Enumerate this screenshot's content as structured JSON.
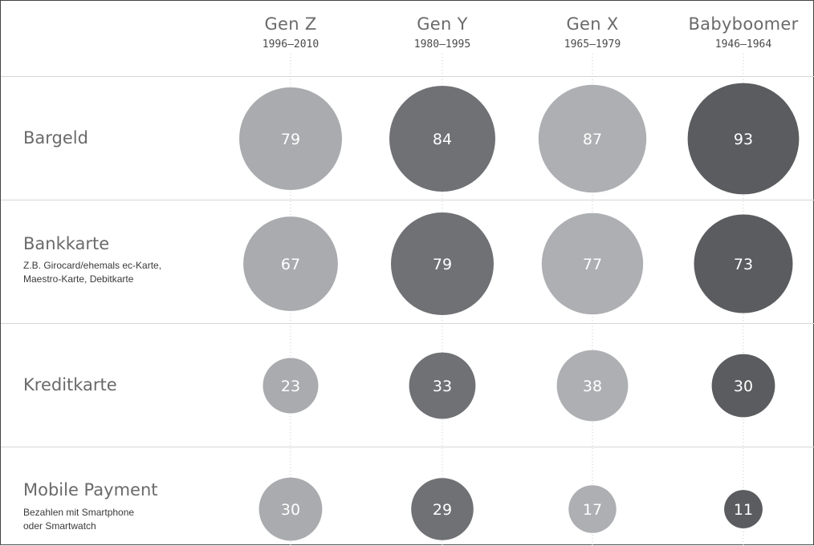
{
  "chart_data": {
    "type": "bubble-matrix",
    "columns": [
      {
        "name": "Gen Z",
        "years": "1996–2010"
      },
      {
        "name": "Gen Y",
        "years": "1980–1995"
      },
      {
        "name": "Gen X",
        "years": "1965–1979"
      },
      {
        "name": "Babyboomer",
        "years": "1946–1964"
      }
    ],
    "rows": [
      {
        "label": "Bargeld",
        "sub": [],
        "values": [
          79,
          84,
          87,
          93
        ]
      },
      {
        "label": "Bankkarte",
        "sub": [
          "Z.B. Girocard/ehemals ec-Karte,",
          "Maestro-Karte, Debitkarte"
        ],
        "values": [
          67,
          79,
          77,
          73
        ]
      },
      {
        "label": "Kreditkarte",
        "sub": [],
        "values": [
          23,
          33,
          38,
          30
        ]
      },
      {
        "label": "Mobile Payment",
        "sub": [
          "Bezahlen mit Smartphone",
          "oder Smartwatch"
        ],
        "values": [
          30,
          29,
          17,
          11
        ]
      }
    ],
    "colors": [
      "#a9abae",
      "#707175",
      "#adafb2",
      "#5b5c5f"
    ]
  }
}
